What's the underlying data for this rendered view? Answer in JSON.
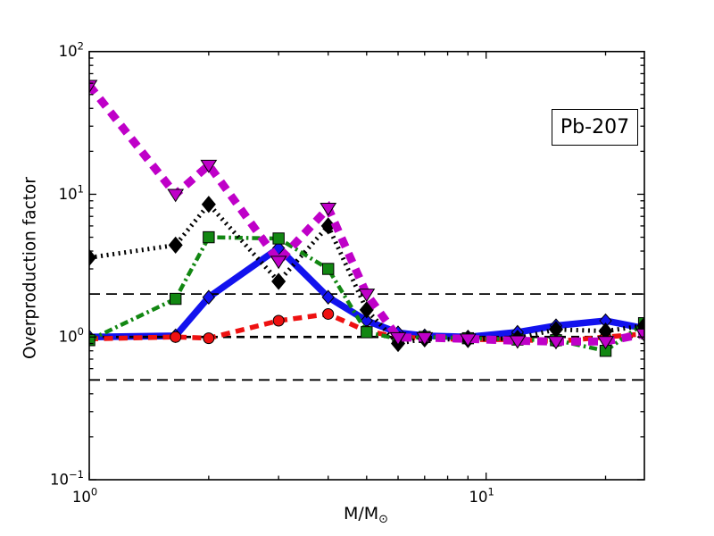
{
  "figure": {
    "background": "#ffffff",
    "annotation": "Pb-207"
  },
  "chart_data": {
    "type": "line",
    "title": "",
    "annotation": "Pb-207",
    "xlabel_main": "M/M",
    "xlabel_subscript": "⊙",
    "ylabel": "Overproduction factor",
    "xscale": "log",
    "yscale": "log",
    "xlim": [
      1,
      25
    ],
    "ylim": [
      0.1,
      100
    ],
    "grid": false,
    "legend": "none",
    "x_major_ticks": [
      {
        "value": 1,
        "base": "10",
        "exp": "0"
      },
      {
        "value": 10,
        "base": "10",
        "exp": "1"
      }
    ],
    "y_major_ticks": [
      {
        "value": 100,
        "base": "10",
        "exp": "2"
      },
      {
        "value": 10,
        "base": "10",
        "exp": "1"
      },
      {
        "value": 1,
        "base": "10",
        "exp": "0"
      },
      {
        "value": 0.1,
        "base": "10",
        "exp": "−1"
      }
    ],
    "reference_lines": [
      {
        "y": 2,
        "color": "#000000",
        "style": "dashed"
      },
      {
        "y": 1,
        "color": "#000000",
        "style": "dashed"
      },
      {
        "y": 0.5,
        "color": "#000000",
        "style": "dashed"
      }
    ],
    "masses": [
      1,
      1.65,
      2,
      3,
      4,
      5,
      6,
      7,
      9,
      12,
      15,
      20,
      25
    ],
    "series": [
      {
        "key": "magenta",
        "name": "heavy-dashed-magenta-triangles",
        "color": "#bf00c8",
        "marker": "triangle-down",
        "linestyle": "dashed-heavy",
        "values": [
          58,
          10,
          16,
          3.4,
          8.0,
          2.0,
          0.99,
          0.99,
          0.97,
          0.94,
          0.93,
          0.93,
          1.05
        ]
      },
      {
        "key": "black",
        "name": "dotted-black-diamonds",
        "color": "#000000",
        "marker": "diamond",
        "linestyle": "dotted",
        "values": [
          3.6,
          4.4,
          8.5,
          2.45,
          6.0,
          1.55,
          0.9,
          0.97,
          0.96,
          0.98,
          1.13,
          1.1,
          1.2
        ]
      },
      {
        "key": "green",
        "name": "dashdot-green-squares",
        "color": "#128712",
        "marker": "square",
        "linestyle": "dashdot",
        "values": [
          0.95,
          1.85,
          5.0,
          4.9,
          3.0,
          1.08,
          0.97,
          1.0,
          0.98,
          0.96,
          0.95,
          0.8,
          1.25
        ]
      },
      {
        "key": "blue",
        "name": "solid-blue-diamonds",
        "color": "#1212ee",
        "marker": "diamond-small",
        "linestyle": "solid",
        "values": [
          1.0,
          1.02,
          1.9,
          4.2,
          1.9,
          1.3,
          1.07,
          1.02,
          1.0,
          1.08,
          1.2,
          1.3,
          1.15
        ]
      },
      {
        "key": "red",
        "name": "dashed-red-circles",
        "color": "#ee1111",
        "marker": "circle",
        "linestyle": "dashed",
        "values": [
          0.97,
          1.0,
          0.98,
          1.3,
          1.45,
          1.1,
          1.0,
          0.98,
          0.96,
          0.96,
          0.93,
          1.0,
          1.05
        ]
      }
    ]
  }
}
